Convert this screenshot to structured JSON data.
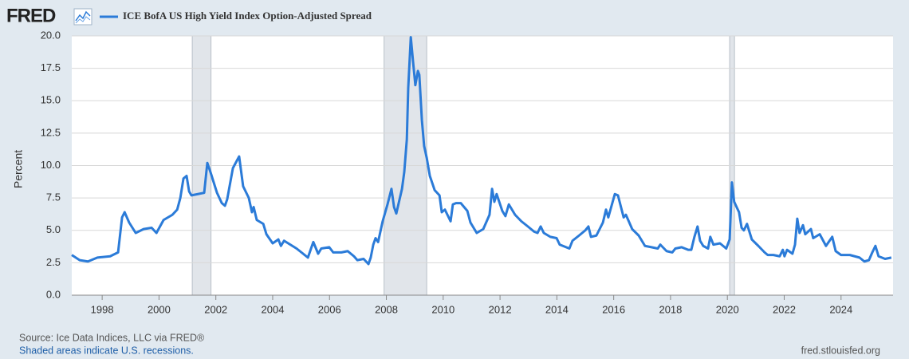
{
  "header": {
    "logo": "FRED"
  },
  "footer": {
    "source": "Source: Ice Data Indices, LLC via FRED®",
    "note": "Shaded areas indicate U.S. recessions.",
    "site": "fred.stlouisfed.org"
  },
  "chart_data": {
    "type": "line",
    "y_label": "Percent",
    "x": [
      1996.93,
      1997.21,
      1997.5,
      1997.83,
      1998.28,
      1998.56,
      1998.7,
      1998.79,
      1998.95,
      1999.18,
      1999.46,
      1999.74,
      1999.91,
      2000.16,
      2000.47,
      2000.64,
      2000.75,
      2000.86,
      2000.97,
      2001.06,
      2001.14,
      2001.37,
      2001.59,
      2001.7,
      2001.81,
      2002.04,
      2002.21,
      2002.32,
      2002.4,
      2002.6,
      2002.77,
      2002.82,
      2002.96,
      2003.16,
      2003.27,
      2003.33,
      2003.44,
      2003.67,
      2003.78,
      2004.0,
      2004.2,
      2004.29,
      2004.4,
      2004.62,
      2004.84,
      2005.07,
      2005.24,
      2005.35,
      2005.43,
      2005.6,
      2005.71,
      2005.99,
      2006.13,
      2006.42,
      2006.64,
      2006.86,
      2006.98,
      2007.2,
      2007.37,
      2007.45,
      2007.54,
      2007.62,
      2007.71,
      2007.87,
      2008.04,
      2008.18,
      2008.27,
      2008.35,
      2008.55,
      2008.63,
      2008.72,
      2008.77,
      2008.86,
      2008.94,
      2009.02,
      2009.11,
      2009.16,
      2009.25,
      2009.33,
      2009.42,
      2009.53,
      2009.7,
      2009.87,
      2009.95,
      2010.06,
      2010.26,
      2010.34,
      2010.45,
      2010.62,
      2010.85,
      2010.96,
      2011.18,
      2011.41,
      2011.63,
      2011.72,
      2011.8,
      2011.88,
      2012.08,
      2012.19,
      2012.31,
      2012.53,
      2012.75,
      2012.98,
      2013.2,
      2013.32,
      2013.43,
      2013.54,
      2013.77,
      2013.99,
      2014.1,
      2014.44,
      2014.55,
      2014.78,
      2015.0,
      2015.11,
      2015.2,
      2015.39,
      2015.62,
      2015.73,
      2015.81,
      2016.04,
      2016.15,
      2016.35,
      2016.43,
      2016.65,
      2016.88,
      2017.1,
      2017.33,
      2017.55,
      2017.64,
      2017.86,
      2018.06,
      2018.17,
      2018.39,
      2018.62,
      2018.73,
      2018.84,
      2018.95,
      2019.04,
      2019.15,
      2019.32,
      2019.4,
      2019.51,
      2019.74,
      2019.96,
      2020.08,
      2020.16,
      2020.24,
      2020.41,
      2020.5,
      2020.58,
      2020.69,
      2020.86,
      2021.09,
      2021.31,
      2021.42,
      2021.62,
      2021.84,
      2021.95,
      2022.01,
      2022.1,
      2022.29,
      2022.38,
      2022.46,
      2022.54,
      2022.66,
      2022.74,
      2022.94,
      2023.02,
      2023.25,
      2023.47,
      2023.69,
      2023.81,
      2024.0,
      2024.31,
      2024.65,
      2024.82,
      2024.98,
      2025.1,
      2025.21,
      2025.32,
      2025.55,
      2025.77
    ],
    "series": [
      {
        "name": "ICE BofA US High Yield Index Option-Adjusted Spread",
        "color": "#2b7bd8",
        "values": [
          3.1,
          2.7,
          2.6,
          2.9,
          3.0,
          3.3,
          6.0,
          6.4,
          5.6,
          4.8,
          5.1,
          5.2,
          4.8,
          5.8,
          6.2,
          6.6,
          7.5,
          9.0,
          9.2,
          8.0,
          7.7,
          7.8,
          7.9,
          10.2,
          9.5,
          7.9,
          7.1,
          6.9,
          7.4,
          9.8,
          10.5,
          10.7,
          8.4,
          7.5,
          6.4,
          6.8,
          5.8,
          5.5,
          4.7,
          4.0,
          4.3,
          3.8,
          4.2,
          3.9,
          3.6,
          3.2,
          2.9,
          3.6,
          4.1,
          3.2,
          3.6,
          3.7,
          3.3,
          3.3,
          3.4,
          3.0,
          2.7,
          2.8,
          2.4,
          2.9,
          3.9,
          4.4,
          4.1,
          5.7,
          7.0,
          8.2,
          6.8,
          6.3,
          8.2,
          9.5,
          12.0,
          16.0,
          19.9,
          18.0,
          16.2,
          17.3,
          17.0,
          13.5,
          11.5,
          10.6,
          9.2,
          8.1,
          7.7,
          6.4,
          6.6,
          5.7,
          7.0,
          7.1,
          7.1,
          6.5,
          5.6,
          4.8,
          5.1,
          6.2,
          8.2,
          7.2,
          7.8,
          6.5,
          6.1,
          7.0,
          6.2,
          5.7,
          5.3,
          4.9,
          4.8,
          5.3,
          4.8,
          4.5,
          4.4,
          3.9,
          3.6,
          4.2,
          4.6,
          5.0,
          5.3,
          4.5,
          4.6,
          5.6,
          6.6,
          6.0,
          7.8,
          7.7,
          6.0,
          6.2,
          5.1,
          4.6,
          3.8,
          3.7,
          3.6,
          3.9,
          3.4,
          3.3,
          3.6,
          3.7,
          3.5,
          3.5,
          4.5,
          5.3,
          4.2,
          3.8,
          3.6,
          4.5,
          3.9,
          4.0,
          3.6,
          4.3,
          8.7,
          7.2,
          6.4,
          5.2,
          5.0,
          5.5,
          4.3,
          3.8,
          3.3,
          3.1,
          3.1,
          3.0,
          3.5,
          3.0,
          3.5,
          3.2,
          3.9,
          5.9,
          4.8,
          5.4,
          4.7,
          5.1,
          4.4,
          4.7,
          3.8,
          4.5,
          3.4,
          3.1,
          3.1,
          2.9,
          2.6,
          2.7,
          3.3,
          3.8,
          3.0,
          2.8,
          2.9
        ]
      }
    ],
    "recessions": [
      [
        2001.17,
        2001.83
      ],
      [
        2007.92,
        2009.42
      ],
      [
        2020.08,
        2020.25
      ]
    ],
    "recession_color": "#e1e5ea",
    "xlim": [
      1996.93,
      2025.83
    ],
    "xticks": [
      1998,
      2000,
      2002,
      2004,
      2006,
      2008,
      2010,
      2012,
      2014,
      2016,
      2018,
      2020,
      2022,
      2024
    ],
    "ylim": [
      0,
      20
    ],
    "yticks": [
      {
        "value": 0,
        "label": "0.0"
      },
      {
        "value": 2.5,
        "label": "2.5"
      },
      {
        "value": 5,
        "label": "5.0"
      },
      {
        "value": 7.5,
        "label": "7.5"
      },
      {
        "value": 10,
        "label": "10.0"
      },
      {
        "value": 12.5,
        "label": "12.5"
      },
      {
        "value": 15,
        "label": "15.0"
      },
      {
        "value": 17.5,
        "label": "17.5"
      },
      {
        "value": 20,
        "label": "20.0"
      }
    ],
    "grid": true
  }
}
